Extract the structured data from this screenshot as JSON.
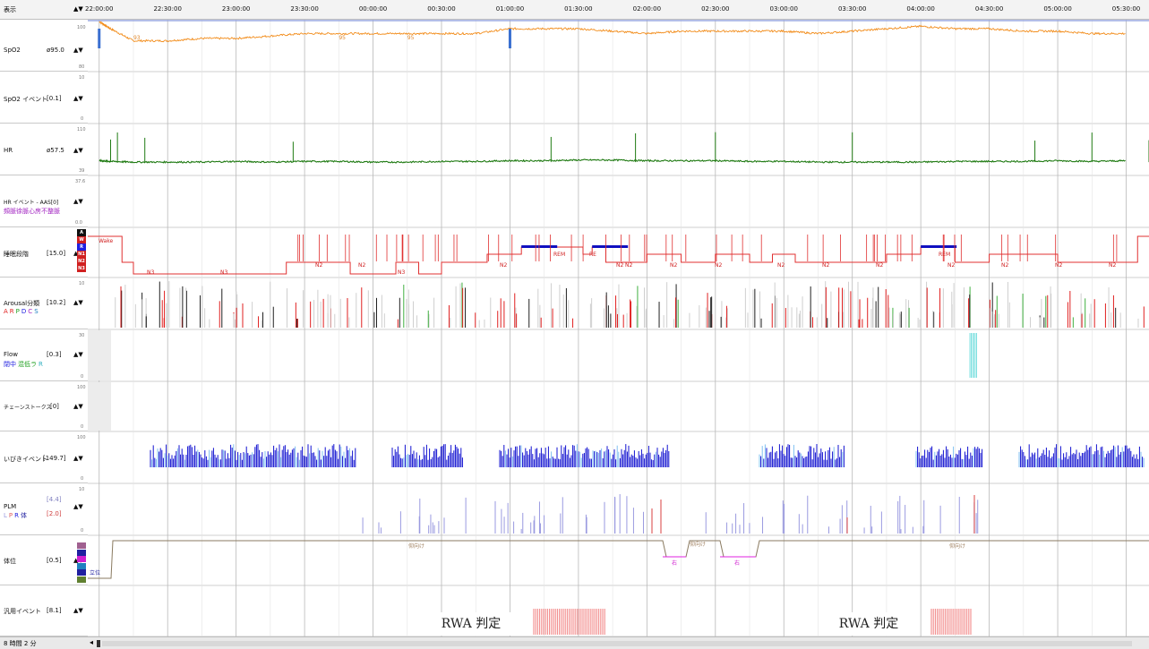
{
  "header": {
    "menu_label": "表示",
    "scroll_arrows": "▲▼"
  },
  "time_axis": {
    "ticks": [
      "22:00:00",
      "22:30:00",
      "23:00:00",
      "23:30:00",
      "00:00:00",
      "00:30:00",
      "01:00:00",
      "01:30:00",
      "02:00:00",
      "02:30:00",
      "03:00:00",
      "03:30:00",
      "04:00:00",
      "04:30:00",
      "05:00:00",
      "05:30:00"
    ]
  },
  "channels": {
    "spo2": {
      "name": "SpO2",
      "value": "ø95.0",
      "arrows": "▲▼",
      "scale_top": "100",
      "scale_bottom": "80",
      "annotations": [
        "93",
        "95",
        "95"
      ],
      "color": "#f28c1a"
    },
    "spo2_event": {
      "name": "SpO2 イベント",
      "value": "[0.1]",
      "arrows": "▲▼",
      "scale_top": "10",
      "scale_bottom": "0"
    },
    "hr": {
      "name": "HR",
      "value": "ø57.5",
      "arrows": "▲▼",
      "scale_top": "110",
      "scale_bottom": "39",
      "color": "#1f7a12"
    },
    "hr_event": {
      "name": "HR イベント - AAS[0]",
      "value": "",
      "arrows": "▲▼",
      "scale_top": "37.6",
      "scale_bottom": "0.0",
      "sub_label": "頻脈徐脈心房不整脈"
    },
    "sleep_stage": {
      "name": "睡眠段階",
      "value": "[15.0]",
      "arrows": "▲▼",
      "stage_codes": [
        "A",
        "W",
        "R",
        "N1",
        "N2",
        "N3"
      ],
      "labels": [
        "Wake",
        "N3",
        "N3",
        "N2",
        "N2",
        "N3",
        "N2",
        "N2",
        "REM",
        "RE",
        "N2",
        "N2",
        "N2",
        "N2",
        "N2",
        "N2",
        "N2",
        "REM",
        "N2",
        "N2",
        "N2"
      ]
    },
    "arousal": {
      "name": "Arousal分類",
      "value": "[10.2]",
      "arrows": "▲▼",
      "scale_top": "10",
      "sub_letters": [
        "A",
        "R",
        "P",
        "D",
        "C",
        "S"
      ]
    },
    "flow": {
      "name": "Flow",
      "value": "[0.3]",
      "arrows": "▲▼",
      "scale_top": "30",
      "scale_bottom": "0",
      "sub_label_1": "閉中",
      "sub_label_2": "混低ラ",
      "sub_label_3": "R"
    },
    "cheyne": {
      "name": "チェーンストークス",
      "value": "[0]",
      "arrows": "▲▼",
      "scale_top": "100",
      "scale_bottom": "0"
    },
    "snore": {
      "name": "いびきイベント",
      "value": "[149.7]",
      "arrows": "▲▼",
      "scale_top": "100",
      "scale_bottom": "0"
    },
    "plm": {
      "name": "PLM",
      "value_1": "[4.4]",
      "value_2": "[2.0]",
      "arrows": "▲▼",
      "scale_top": "10",
      "scale_bottom": "0",
      "sub_letters": [
        "L",
        "P",
        "R",
        "体"
      ]
    },
    "position": {
      "name": "体位",
      "value": "[0.5]",
      "arrows": "▲▼",
      "labels": [
        "立位",
        "仰向け",
        "右",
        "仰向け",
        "右",
        "仰向け"
      ]
    },
    "general_event": {
      "name": "汎用イベント",
      "value": "[8.1]",
      "arrows": "▲▼"
    }
  },
  "rwa_labels": [
    "RWA 判定",
    "RWA 判定"
  ],
  "footer": {
    "duration": "8 時間 2 分"
  },
  "chart_data": {
    "type": "line",
    "x_range": [
      "21:55:00",
      "05:40:00"
    ],
    "series": [
      {
        "name": "SpO2",
        "x": [
          "22:00",
          "22:05",
          "22:15",
          "22:30",
          "22:45",
          "23:00",
          "23:15",
          "23:30",
          "23:45",
          "00:00",
          "00:15",
          "00:30",
          "00:45",
          "01:00",
          "01:15",
          "01:30",
          "01:45",
          "02:00",
          "02:15",
          "02:30",
          "02:45",
          "03:00",
          "03:15",
          "03:30",
          "03:45",
          "04:00",
          "04:15",
          "04:30",
          "04:45",
          "05:00",
          "05:15",
          "05:30"
        ],
        "values": [
          100,
          97,
          92,
          92,
          93,
          93,
          94,
          95,
          95,
          95,
          95,
          95,
          95,
          97,
          97,
          97,
          96,
          95,
          96,
          96,
          96,
          96,
          95,
          96,
          97,
          98,
          97,
          97,
          96,
          96,
          95,
          95
        ],
        "ylim": [
          80,
          100
        ]
      },
      {
        "name": "HR",
        "x": [
          "22:00",
          "22:05",
          "22:15",
          "22:30",
          "22:45",
          "23:00",
          "23:15",
          "23:30",
          "23:45",
          "00:00",
          "00:15",
          "00:30",
          "00:45",
          "01:00",
          "01:15",
          "01:30",
          "01:45",
          "02:00",
          "02:15",
          "02:30",
          "02:45",
          "03:00",
          "03:15",
          "03:30",
          "03:45",
          "04:00",
          "04:15",
          "04:30",
          "04:45",
          "05:00",
          "05:15",
          "05:30"
        ],
        "values": [
          58,
          57,
          56,
          56,
          56,
          57,
          56,
          57,
          57,
          56,
          56,
          57,
          57,
          58,
          58,
          59,
          59,
          58,
          58,
          58,
          57,
          57,
          56,
          56,
          56,
          56,
          57,
          57,
          57,
          58,
          57,
          58
        ],
        "ylim": [
          39,
          110
        ]
      }
    ],
    "sleep_stages": {
      "levels": [
        "W",
        "R",
        "N1",
        "N2",
        "N3"
      ],
      "segments": [
        [
          "21:55",
          "W"
        ],
        [
          "22:10",
          "N2"
        ],
        [
          "22:15",
          "N3"
        ],
        [
          "23:22",
          "N2"
        ],
        [
          "23:50",
          "N3"
        ],
        [
          "00:10",
          "N2"
        ],
        [
          "00:20",
          "N3"
        ],
        [
          "00:30",
          "N2"
        ],
        [
          "00:50",
          "N1"
        ],
        [
          "01:05",
          "R"
        ],
        [
          "01:32",
          "N1"
        ],
        [
          "01:36",
          "R"
        ],
        [
          "01:42",
          "N2"
        ],
        [
          "02:00",
          "N1"
        ],
        [
          "02:15",
          "N2"
        ],
        [
          "02:30",
          "N1"
        ],
        [
          "02:45",
          "N2"
        ],
        [
          "02:55",
          "N1"
        ],
        [
          "03:05",
          "N2"
        ],
        [
          "03:45",
          "N1"
        ],
        [
          "04:00",
          "R"
        ],
        [
          "04:15",
          "N2"
        ],
        [
          "04:30",
          "N1"
        ],
        [
          "05:00",
          "N2"
        ],
        [
          "05:35",
          "W"
        ]
      ]
    }
  }
}
